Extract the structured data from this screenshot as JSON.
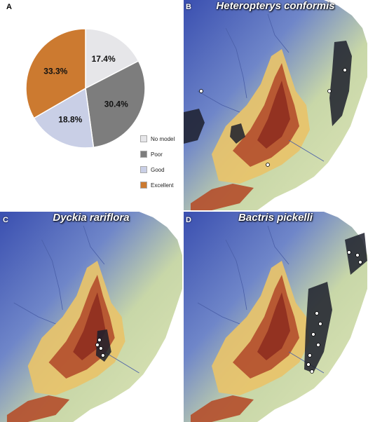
{
  "panels": {
    "a": {
      "label": "A"
    },
    "b": {
      "label": "B",
      "title": "Heteropterys conformis"
    },
    "c": {
      "label": "C",
      "title": "Dyckia rariflora"
    },
    "d": {
      "label": "D",
      "title": "Bactris pickelli"
    }
  },
  "chart_data": {
    "type": "pie",
    "title": "",
    "slices": [
      {
        "name": "No model",
        "value": 17.4,
        "label": "17.4%",
        "color": "#e6e6e9"
      },
      {
        "name": "Poor",
        "value": 30.4,
        "label": "30.4%",
        "color": "#7d7d7d"
      },
      {
        "name": "Good",
        "value": 18.8,
        "label": "18.8%",
        "color": "#c9cfe6"
      },
      {
        "name": "Excellent",
        "value": 33.3,
        "label": "33.3%",
        "color": "#cc7a30"
      }
    ],
    "start_angle": "12 o'clock",
    "direction": "clockwise",
    "legend_position": "bottom-right"
  },
  "colors": {
    "ocean": "#ffffff",
    "lowland": "#3a4fb0",
    "plain": "#c8d7a8",
    "plateau": "#e8c36a",
    "highland": "#b4502e",
    "peak": "#8f2f1f",
    "prediction": "#1c1f2b",
    "occurrence": "#ffffff"
  }
}
